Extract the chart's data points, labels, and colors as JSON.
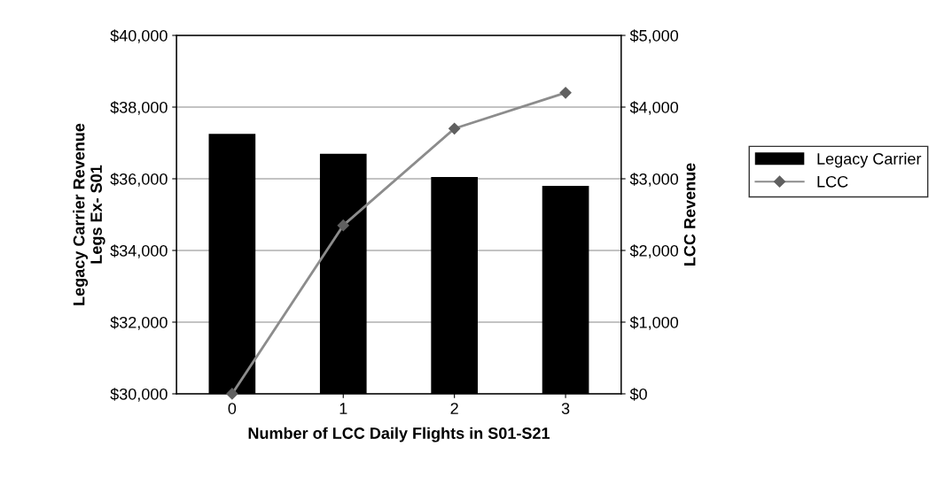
{
  "chart_data": {
    "type": "bar",
    "xlabel": "Number of LCC Daily Flights in S01-S21",
    "ylabel": "Legacy Carrier Revenue\nLegs Ex- S01",
    "y2label": "LCC Revenue",
    "categories": [
      "0",
      "1",
      "2",
      "3"
    ],
    "series": [
      {
        "name": "Legacy Carrier",
        "color": "#000000",
        "values": [
          37250,
          36700,
          36050,
          35800
        ]
      },
      {
        "name": "LCC",
        "type": "line",
        "axis": "y2",
        "color": "#8c8c8c",
        "marker": "diamond",
        "values": [
          0,
          2350,
          3700,
          4200
        ]
      }
    ],
    "ylim": [
      30000,
      40000
    ],
    "yticks": [
      {
        "value": 30000,
        "label": "$30,000"
      },
      {
        "value": 32000,
        "label": "$32,000"
      },
      {
        "value": 34000,
        "label": "$34,000"
      },
      {
        "value": 36000,
        "label": "$36,000"
      },
      {
        "value": 38000,
        "label": "$38,000"
      },
      {
        "value": 40000,
        "label": "$40,000"
      }
    ],
    "y2lim": [
      0,
      5000
    ],
    "y2ticks": [
      {
        "value": 0,
        "label": "$0"
      },
      {
        "value": 1000,
        "label": "$1,000"
      },
      {
        "value": 2000,
        "label": "$2,000"
      },
      {
        "value": 3000,
        "label": "$3,000"
      },
      {
        "value": 4000,
        "label": "$4,000"
      },
      {
        "value": 5000,
        "label": "$5,000"
      }
    ],
    "grid": "y",
    "legend": "right"
  }
}
